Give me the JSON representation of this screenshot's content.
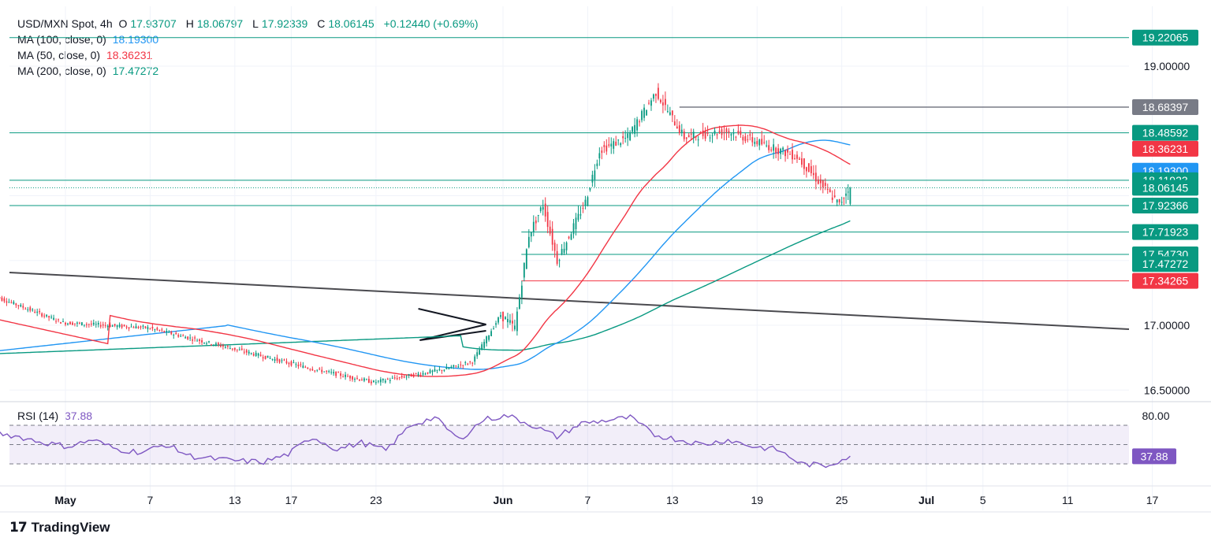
{
  "header": {
    "symbol": "USD/MXN Spot, 4h",
    "open_label": "O",
    "open": "17.93707",
    "high_label": "H",
    "high": "18.06797",
    "low_label": "L",
    "low": "17.92339",
    "close_label": "C",
    "close": "18.06145",
    "change": "+0.12440 (+0.69%)"
  },
  "indicators": [
    {
      "label": "MA (100, close, 0)",
      "value": "18.19300",
      "color": "#2196f3"
    },
    {
      "label": "MA (50, close, 0)",
      "value": "18.36231",
      "color": "#f23645"
    },
    {
      "label": "MA (200, close, 0)",
      "value": "17.47272",
      "color": "#089981"
    }
  ],
  "rsi": {
    "label": "RSI (14)",
    "value": "37.88",
    "color": "#7e57c2",
    "upper": "80.00",
    "upper_band": 70,
    "lower_band": 30,
    "mid_band": 50
  },
  "brand": "TradingView",
  "colors": {
    "up": "#089981",
    "down": "#f23645",
    "grid": "#f0f3fa",
    "trendline": "#4a4a4f"
  },
  "chart_data": {
    "type": "candlestick",
    "title": "USD/MXN Spot, 4h",
    "ylim": [
      16.42,
      19.35
    ],
    "y_ticks": [
      "19.00000",
      "17.00000",
      "16.50000"
    ],
    "x_ticks": [
      "May",
      "7",
      "13",
      "17",
      "23",
      "Jun",
      "7",
      "13",
      "19",
      "25",
      "Jul",
      "5",
      "11",
      "17"
    ],
    "price_labels": [
      {
        "text": "19.22065",
        "value": 19.22065,
        "color": "#089981"
      },
      {
        "text": "18.68397",
        "value": 18.68397,
        "color": "#787b86"
      },
      {
        "text": "18.48592",
        "value": 18.48592,
        "color": "#089981"
      },
      {
        "text": "18.36231",
        "value": 18.36231,
        "color": "#f23645"
      },
      {
        "text": "18.19300",
        "value": 18.193,
        "color": "#2196f3"
      },
      {
        "text": "18.11923",
        "value": 18.11923,
        "color": "#089981"
      },
      {
        "text": "18.06145",
        "value": 18.06145,
        "color": "#089981"
      },
      {
        "text": "17.92366",
        "value": 17.92366,
        "color": "#089981"
      },
      {
        "text": "17.71923",
        "value": 17.71923,
        "color": "#089981"
      },
      {
        "text": "17.54730",
        "value": 17.5473,
        "color": "#089981"
      },
      {
        "text": "17.47272",
        "value": 17.47272,
        "color": "#089981"
      },
      {
        "text": "17.34265",
        "value": 17.34265,
        "color": "#f23645"
      }
    ],
    "horizontal_levels": [
      {
        "value": 19.22065,
        "color": "#089981",
        "from": "start"
      },
      {
        "value": 18.48592,
        "color": "#089981",
        "from": "start"
      },
      {
        "value": 18.11923,
        "color": "#089981",
        "from": "start"
      },
      {
        "value": 18.06145,
        "color": "#089981",
        "from": "start",
        "dotted": true
      },
      {
        "value": 17.92366,
        "color": "#089981",
        "from": "start"
      },
      {
        "value": 17.71923,
        "color": "#089981",
        "from": "jun-2"
      },
      {
        "value": 17.5473,
        "color": "#089981",
        "from": "jun-2"
      },
      {
        "value": 17.34265,
        "color": "#f23645",
        "from": "jun-2"
      },
      {
        "value": 18.68397,
        "color": "#787b86",
        "from": "jun-13"
      }
    ],
    "key_points": [
      {
        "date": "Apr 26",
        "close": 17.23
      },
      {
        "date": "May 1",
        "close": 17.02
      },
      {
        "date": "May 7",
        "close": 16.98
      },
      {
        "date": "May 13",
        "close": 16.82
      },
      {
        "date": "May 17",
        "close": 16.68
      },
      {
        "date": "May 21",
        "close": 16.56
      },
      {
        "date": "May 23",
        "close": 16.66
      },
      {
        "date": "May 28",
        "close": 16.72
      },
      {
        "date": "May 30",
        "close": 17.08
      },
      {
        "date": "Jun 1",
        "close": 16.98
      },
      {
        "date": "Jun 2",
        "close": 17.7
      },
      {
        "date": "Jun 3",
        "close": 17.93
      },
      {
        "date": "Jun 5",
        "close": 17.5
      },
      {
        "date": "Jun 7",
        "close": 17.95
      },
      {
        "date": "Jun 8",
        "close": 18.35
      },
      {
        "date": "Jun 10",
        "close": 18.45
      },
      {
        "date": "Jun 12",
        "close": 18.8
      },
      {
        "date": "Jun 14",
        "close": 18.45
      },
      {
        "date": "Jun 17",
        "close": 18.5
      },
      {
        "date": "Jun 20",
        "close": 18.38
      },
      {
        "date": "Jun 22",
        "close": 18.3
      },
      {
        "date": "Jun 24",
        "close": 18.05
      },
      {
        "date": "Jun 25",
        "close": 17.93
      },
      {
        "date": "Jun 25",
        "close": 18.06
      }
    ],
    "rsi_series": [
      63,
      58,
      52,
      48,
      55,
      45,
      42,
      50,
      38,
      35,
      33,
      32,
      40,
      58,
      45,
      52,
      44,
      70,
      78,
      55,
      76,
      80,
      70,
      58,
      72,
      75,
      78,
      60,
      55,
      50,
      55,
      48,
      45,
      30,
      28,
      38
    ]
  }
}
